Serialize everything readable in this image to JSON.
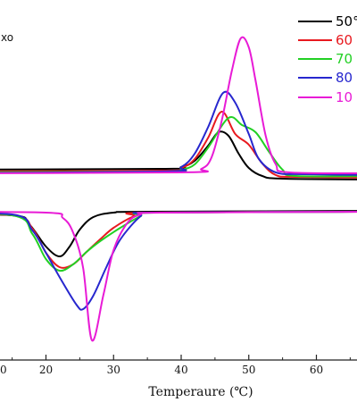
{
  "chart_data": {
    "type": "line",
    "xlabel": "Temperaure (℃)",
    "annotation": "xo",
    "x_ticks": [
      20,
      30,
      40,
      50,
      60
    ],
    "partial_tick_label": "0",
    "xlim": [
      13.2,
      70
    ],
    "legend": {
      "placement": "top-right",
      "labels": [
        "50°",
        "60",
        "70",
        "80",
        "10"
      ]
    },
    "series": [
      {
        "color": "#000000",
        "exo": [
          [
            0,
            190
          ],
          [
            37,
            189
          ],
          [
            40,
            187
          ],
          [
            42,
            180
          ],
          [
            44,
            163
          ],
          [
            45.5,
            148
          ],
          [
            47,
            152
          ],
          [
            48.5,
            172
          ],
          [
            50,
            188
          ],
          [
            52,
            197
          ],
          [
            55,
            200
          ],
          [
            70,
            201
          ]
        ],
        "endo": [
          [
            0,
            240
          ],
          [
            15,
            241
          ],
          [
            17.5,
            251
          ],
          [
            20,
            276
          ],
          [
            22,
            287
          ],
          [
            23.5,
            276
          ],
          [
            25,
            257
          ],
          [
            27,
            243
          ],
          [
            30,
            238
          ],
          [
            35,
            237
          ],
          [
            70,
            236
          ]
        ]
      },
      {
        "color": "#e8191f",
        "exo": [
          [
            0,
            192
          ],
          [
            37,
            191
          ],
          [
            40,
            188
          ],
          [
            42,
            178
          ],
          [
            44,
            154
          ],
          [
            46,
            125
          ],
          [
            48,
            150
          ],
          [
            50,
            162
          ],
          [
            52,
            183
          ],
          [
            54,
            196
          ],
          [
            57,
            198
          ],
          [
            70,
            199
          ]
        ],
        "endo": [
          [
            0,
            239
          ],
          [
            15,
            241
          ],
          [
            18,
            256
          ],
          [
            20,
            283
          ],
          [
            22,
            299
          ],
          [
            24,
            296
          ],
          [
            26,
            282
          ],
          [
            28,
            268
          ],
          [
            30,
            255
          ],
          [
            33,
            242
          ],
          [
            35,
            238
          ],
          [
            70,
            237
          ]
        ]
      },
      {
        "color": "#22d024",
        "exo": [
          [
            0,
            193
          ],
          [
            37,
            192
          ],
          [
            40,
            190
          ],
          [
            42,
            184
          ],
          [
            44,
            165
          ],
          [
            47,
            132
          ],
          [
            49,
            140
          ],
          [
            51,
            148
          ],
          [
            53,
            170
          ],
          [
            55,
            190
          ],
          [
            57,
            197
          ],
          [
            70,
            197
          ]
        ],
        "endo": [
          [
            0,
            239
          ],
          [
            15,
            241
          ],
          [
            18,
            262
          ],
          [
            20,
            290
          ],
          [
            22,
            303
          ],
          [
            24,
            296
          ],
          [
            26,
            282
          ],
          [
            28,
            270
          ],
          [
            31,
            255
          ],
          [
            34,
            242
          ],
          [
            36,
            238
          ],
          [
            70,
            237
          ]
        ]
      },
      {
        "color": "#2727ce",
        "exo": [
          [
            0,
            194
          ],
          [
            37,
            192
          ],
          [
            40,
            187
          ],
          [
            42,
            172
          ],
          [
            44,
            142
          ],
          [
            46.2,
            104
          ],
          [
            48,
            115
          ],
          [
            50,
            150
          ],
          [
            51.5,
            178
          ],
          [
            54,
            193
          ],
          [
            58,
            195
          ],
          [
            70,
            196
          ]
        ],
        "endo": [
          [
            0,
            239
          ],
          [
            15,
            240
          ],
          [
            18,
            258
          ],
          [
            20,
            283
          ],
          [
            22,
            310
          ],
          [
            24.5,
            341
          ],
          [
            25.5,
            346
          ],
          [
            27,
            331
          ],
          [
            29,
            298
          ],
          [
            31,
            268
          ],
          [
            34,
            242
          ],
          [
            36,
            238
          ],
          [
            70,
            237
          ]
        ]
      },
      {
        "color": "#e81bd6",
        "exo": [
          [
            0,
            194
          ],
          [
            40,
            193
          ],
          [
            43,
            189
          ],
          [
            44.5,
            176
          ],
          [
            46,
            135
          ],
          [
            47.5,
            79
          ],
          [
            48.8,
            43
          ],
          [
            50,
            53
          ],
          [
            51,
            90
          ],
          [
            52.5,
            152
          ],
          [
            54,
            184
          ],
          [
            56,
            193
          ],
          [
            70,
            194
          ]
        ],
        "endo": [
          [
            0,
            237
          ],
          [
            20,
            238
          ],
          [
            22.5,
            244
          ],
          [
            24,
            260
          ],
          [
            25.5,
            300
          ],
          [
            26.8,
            381
          ],
          [
            28.5,
            330
          ],
          [
            30,
            280
          ],
          [
            32,
            250
          ],
          [
            34,
            240
          ],
          [
            37,
            238
          ],
          [
            70,
            237
          ]
        ]
      }
    ]
  }
}
